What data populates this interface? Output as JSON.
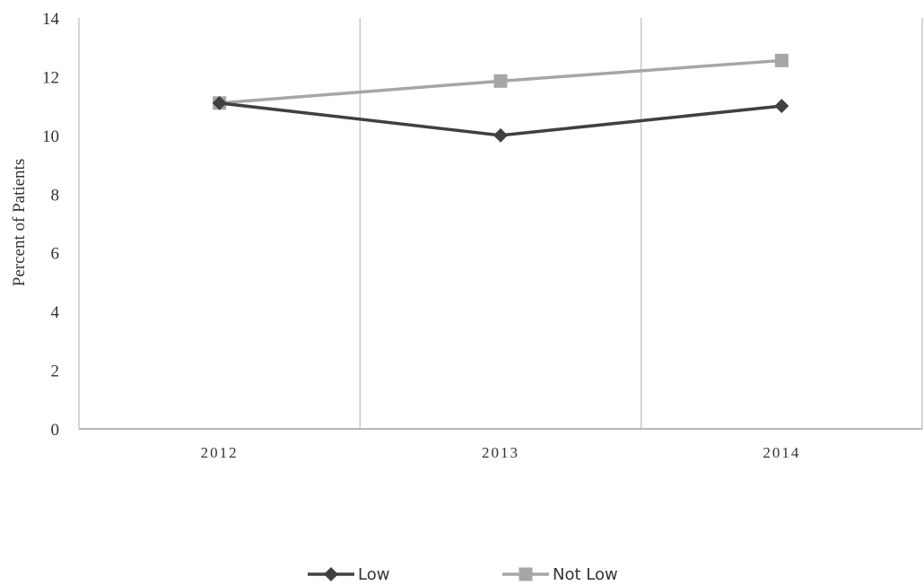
{
  "chart_data": {
    "type": "line",
    "categories": [
      "2012",
      "2013",
      "2014"
    ],
    "series": [
      {
        "name": "Low",
        "values": [
          11.1,
          10.0,
          11.0
        ],
        "color": "#404040",
        "marker": "diamond"
      },
      {
        "name": "Not Low",
        "values": [
          11.1,
          11.85,
          12.55
        ],
        "color": "#a6a6a6",
        "marker": "square"
      }
    ],
    "ylabel": "Percent of Patients",
    "xlabel": "",
    "ylim": [
      0,
      14
    ],
    "yticks": [
      0,
      2,
      4,
      6,
      8,
      10,
      12,
      14
    ],
    "grid": "vertical category separators",
    "legend_position": "bottom"
  }
}
